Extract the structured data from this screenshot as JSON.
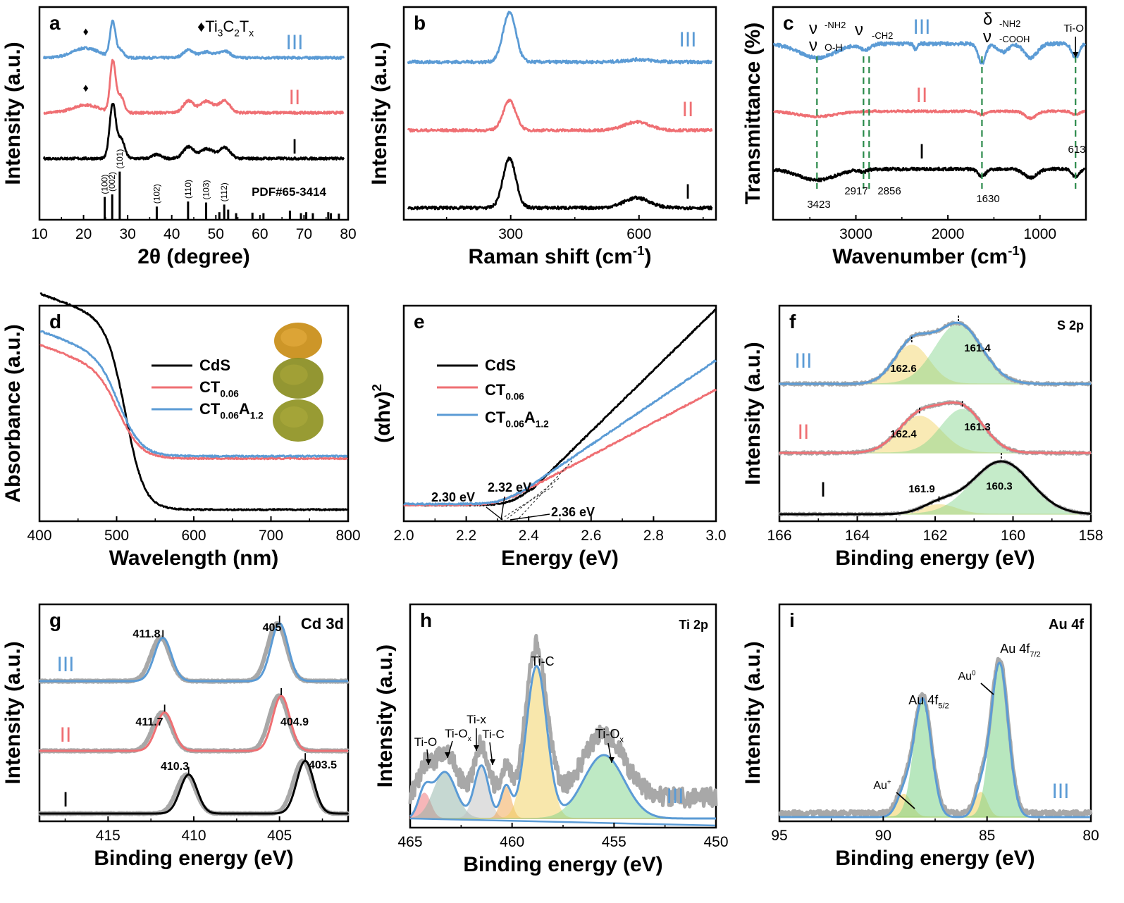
{
  "colors": {
    "I": "#000000",
    "II": "#ef6f73",
    "III": "#5b9bd5",
    "ref": "#a8a8a8",
    "dash": "#2a8a4a",
    "gold": "#f2d15c",
    "green": "#7fd48a",
    "orange": "#f3a24a",
    "red": "#ef6f73",
    "tealgray": "#8fb3a6"
  },
  "chart_data": [
    {
      "id": "a",
      "type": "line",
      "xlabel": "2θ (degree)",
      "ylabel": "Intensity (a.u.)",
      "xlim": [
        10,
        80
      ],
      "xticks": [
        "10",
        "20",
        "30",
        "40",
        "50",
        "60",
        "70",
        "80"
      ],
      "legend": "♦Ti3C2Tx",
      "pdf_label": "PDF#65-3414",
      "series": [
        {
          "name": "III",
          "color": "#5b9bd5",
          "peaks": [
            [
              20.5,
              0.25,
              3
            ],
            [
              26.6,
              0.9,
              0.6
            ],
            [
              28.3,
              0.2,
              0.8
            ],
            [
              43.8,
              0.2,
              1.2
            ],
            [
              48,
              0.15,
              1.5
            ],
            [
              52,
              0.18,
              1.2
            ]
          ]
        },
        {
          "name": "II",
          "color": "#ef6f73",
          "peaks": [
            [
              20.5,
              0.2,
              3
            ],
            [
              26.6,
              1.3,
              0.6
            ],
            [
              28.3,
              0.45,
              0.8
            ],
            [
              43.8,
              0.3,
              1.2
            ],
            [
              48,
              0.3,
              1.5
            ],
            [
              52,
              0.3,
              1.2
            ]
          ]
        },
        {
          "name": "I",
          "color": "#000000",
          "peaks": [
            [
              26.6,
              1.4,
              0.7
            ],
            [
              28.5,
              0.5,
              0.8
            ],
            [
              36.6,
              0.1,
              1
            ],
            [
              43.8,
              0.3,
              1.2
            ],
            [
              48,
              0.25,
              1.5
            ],
            [
              52,
              0.28,
              1.2
            ]
          ]
        }
      ],
      "reference_sticks": [
        [
          24.8,
          0.45
        ],
        [
          26.5,
          0.5
        ],
        [
          28.2,
          0.95
        ],
        [
          36.6,
          0.26
        ],
        [
          43.7,
          0.36
        ],
        [
          47.8,
          0.34
        ],
        [
          50.8,
          0.15
        ],
        [
          51.9,
          0.3
        ],
        [
          52.8,
          0.2
        ],
        [
          54.6,
          0.13
        ],
        [
          58.3,
          0.14
        ],
        [
          60.8,
          0.13
        ],
        [
          66.8,
          0.18
        ],
        [
          69.3,
          0.13
        ],
        [
          70.5,
          0.15
        ],
        [
          72,
          0.13
        ],
        [
          75.5,
          0.15
        ],
        [
          76.1,
          0.13
        ],
        [
          77.9,
          0.12
        ]
      ],
      "hkl": [
        {
          "x": 24.8,
          "t": "(100)"
        },
        {
          "x": 26.5,
          "t": "(002)"
        },
        {
          "x": 28.2,
          "t": "(101)"
        },
        {
          "x": 36.6,
          "t": "(102)"
        },
        {
          "x": 43.7,
          "t": "(110)"
        },
        {
          "x": 47.8,
          "t": "(103)"
        },
        {
          "x": 51.9,
          "t": "(112)"
        }
      ]
    },
    {
      "id": "b",
      "type": "line",
      "xlabel": "Raman shift (cm-1)",
      "ylabel": "Intensity (a.u.)",
      "xlim": [
        50,
        780
      ],
      "xticks": [
        "300",
        "600"
      ],
      "series": [
        {
          "name": "III",
          "color": "#5b9bd5",
          "peaks": [
            [
              297,
              1,
              15
            ],
            [
              600,
              0.05,
              30
            ]
          ]
        },
        {
          "name": "II",
          "color": "#ef6f73",
          "peaks": [
            [
              297,
              0.7,
              15
            ],
            [
              595,
              0.2,
              30
            ]
          ]
        },
        {
          "name": "I",
          "color": "#000000",
          "peaks": [
            [
              297,
              1,
              15
            ],
            [
              595,
              0.2,
              30
            ]
          ]
        }
      ]
    },
    {
      "id": "c",
      "type": "line",
      "xlabel": "Wavenumber (cm-1)",
      "ylabel": "Transmittance (%)",
      "xlim": [
        3900,
        500
      ],
      "xticks": [
        "3000",
        "2000",
        "1000"
      ],
      "band_labels": [
        "ν-NH2",
        "νO-H",
        "ν-CH2",
        "δ-NH2",
        "ν-COOH",
        "Ti-O"
      ],
      "dashed_positions": [
        3423,
        2917,
        2856,
        1630,
        613
      ],
      "wavenumber_labels": [
        "3423",
        "2917",
        "2856",
        "1630",
        "613"
      ],
      "series": [
        {
          "name": "III",
          "color": "#5b9bd5",
          "dips": [
            [
              3423,
              0.5,
              200
            ],
            [
              2917,
              0.15,
              40
            ],
            [
              2856,
              0.12,
              40
            ],
            [
              2350,
              0.2,
              20
            ],
            [
              1630,
              0.7,
              40
            ],
            [
              1400,
              0.3,
              60
            ],
            [
              1100,
              0.5,
              70
            ],
            [
              613,
              0.5,
              40
            ]
          ]
        },
        {
          "name": "II",
          "color": "#ef6f73",
          "dips": [
            [
              3423,
              0.3,
              200
            ],
            [
              1630,
              0.2,
              40
            ],
            [
              1100,
              0.4,
              60
            ],
            [
              613,
              0.2,
              40
            ]
          ]
        },
        {
          "name": "I",
          "color": "#000000",
          "dips": [
            [
              3423,
              0.45,
              200
            ],
            [
              2917,
              0.1,
              40
            ],
            [
              1630,
              0.3,
              40
            ],
            [
              1100,
              0.35,
              70
            ],
            [
              613,
              0.3,
              40
            ]
          ]
        }
      ]
    },
    {
      "id": "d",
      "type": "line",
      "xlabel": "Wavelength (nm)",
      "ylabel": "Absorbance (a.u.)",
      "xlim": [
        400,
        800
      ],
      "xticks": [
        "400",
        "500",
        "600",
        "700",
        "800"
      ],
      "legend_labels": [
        "CdS",
        "CT0.06",
        "CT0.06A1.2"
      ],
      "series": [
        {
          "name": "CdS",
          "color": "#000000",
          "high": 0.86,
          "low": 0.05,
          "edge": 512,
          "width": 12
        },
        {
          "name": "CT0.06",
          "color": "#ef6f73",
          "high": 0.64,
          "low": 0.27,
          "edge": 505,
          "width": 14
        },
        {
          "name": "CT0.06A1.2",
          "color": "#5b9bd5",
          "high": 0.7,
          "low": 0.28,
          "edge": 505,
          "width": 14
        }
      ]
    },
    {
      "id": "e",
      "type": "line",
      "xlabel": "Energy (eV)",
      "ylabel": "(αhv)2",
      "xlim": [
        2.0,
        3.0
      ],
      "xticks": [
        "2.0",
        "2.2",
        "2.4",
        "2.6",
        "2.8",
        "3.0"
      ],
      "legend_labels": [
        "CdS",
        "CT0.06",
        "CT0.06A1.2"
      ],
      "edge_labels": [
        "2.30 eV",
        "2.32 eV",
        "2.36 eV"
      ],
      "series": [
        {
          "name": "CdS",
          "color": "#000000",
          "base": 0.05,
          "eg": 2.36,
          "slope": 1.45
        },
        {
          "name": "CT0.06",
          "color": "#ef6f73",
          "base": 0.05,
          "eg": 2.3,
          "slope": 0.78
        },
        {
          "name": "CT0.06A1.2",
          "color": "#5b9bd5",
          "base": 0.055,
          "eg": 2.32,
          "slope": 1.0
        }
      ]
    },
    {
      "id": "f",
      "type": "line",
      "xlabel": "Binding energy (eV)",
      "ylabel": "Intensity (a.u.)",
      "xlim": [
        166,
        158
      ],
      "xticks": [
        "166",
        "164",
        "162",
        "160",
        "158"
      ],
      "panel_title": "S 2p",
      "series": [
        {
          "name": "III",
          "color": "#5b9bd5",
          "components": [
            [
              162.6,
              0.55,
              0.45
            ],
            [
              161.4,
              0.85,
              0.6
            ]
          ],
          "peak_labels": [
            "162.6",
            "161.4"
          ]
        },
        {
          "name": "II",
          "color": "#ef6f73",
          "components": [
            [
              162.4,
              0.55,
              0.55
            ],
            [
              161.3,
              0.65,
              0.55
            ]
          ],
          "peak_labels": [
            "162.4",
            "161.3"
          ]
        },
        {
          "name": "I",
          "color": "#000000",
          "components": [
            [
              161.9,
              0.18,
              0.45
            ],
            [
              160.3,
              1.0,
              0.75
            ]
          ],
          "peak_labels": [
            "161.9",
            "160.3"
          ]
        }
      ]
    },
    {
      "id": "g",
      "type": "line",
      "xlabel": "Binding energy (eV)",
      "ylabel": "Intensity (a.u.)",
      "xlim": [
        419,
        401
      ],
      "xticks": [
        "415",
        "410",
        "405"
      ],
      "panel_title": "Cd 3d",
      "series": [
        {
          "name": "III",
          "color": "#5b9bd5",
          "peaks": [
            [
              411.8,
              0.75,
              0.5
            ],
            [
              405,
              1.0,
              0.5
            ]
          ],
          "peak_labels": [
            "411.8",
            "405"
          ]
        },
        {
          "name": "II",
          "color": "#ef6f73",
          "peaks": [
            [
              411.7,
              0.7,
              0.5
            ],
            [
              404.9,
              1.0,
              0.5
            ]
          ],
          "peak_labels": [
            "411.7",
            "404.9"
          ]
        },
        {
          "name": "I",
          "color": "#000000",
          "peaks": [
            [
              410.3,
              0.85,
              0.5
            ],
            [
              403.5,
              1.15,
              0.5
            ]
          ],
          "peak_labels": [
            "410.3",
            "403.5"
          ]
        }
      ]
    },
    {
      "id": "h",
      "type": "line",
      "xlabel": "Binding energy (eV)",
      "ylabel": "Intensity (a.u.)",
      "xlim": [
        465,
        450
      ],
      "xticks": [
        "465",
        "460",
        "455",
        "450"
      ],
      "panel_title": "Ti 2p",
      "series_label": "III",
      "component_labels": [
        "Ti-O",
        "Ti-Ox",
        "Ti-x",
        "Ti-C",
        "Ti-C",
        "Ti-Ox"
      ],
      "components": [
        {
          "c": 464.3,
          "a": 0.12,
          "w": 0.3,
          "color": "#ef6f73"
        },
        {
          "c": 463.3,
          "a": 0.22,
          "w": 0.55,
          "color": "#8fb3a6"
        },
        {
          "c": 461.5,
          "a": 0.25,
          "w": 0.35,
          "color": "#c0c0c0"
        },
        {
          "c": 460.3,
          "a": 0.15,
          "w": 0.25,
          "color": "#f3a24a"
        },
        {
          "c": 458.8,
          "a": 0.72,
          "w": 0.5,
          "color": "#f2d15c"
        },
        {
          "c": 455.5,
          "a": 0.3,
          "w": 1.0,
          "color": "#7fd48a"
        }
      ]
    },
    {
      "id": "i",
      "type": "line",
      "xlabel": "Binding energy (eV)",
      "ylabel": "Intensity (a.u.)",
      "xlim": [
        95,
        80
      ],
      "xticks": [
        "95",
        "90",
        "85",
        "80"
      ],
      "panel_title": "Au 4f",
      "series_label": "III",
      "peak_labels": [
        "Au 4f5/2",
        "Au 4f7/2",
        "Au0",
        "Au+"
      ],
      "components": [
        {
          "c": 89.0,
          "a": 0.12,
          "w": 0.35,
          "color": "#f2d15c"
        },
        {
          "c": 88.1,
          "a": 0.62,
          "w": 0.42,
          "color": "#7fd48a"
        },
        {
          "c": 85.3,
          "a": 0.13,
          "w": 0.3,
          "color": "#f2d15c"
        },
        {
          "c": 84.4,
          "a": 0.81,
          "w": 0.42,
          "color": "#7fd48a"
        }
      ]
    }
  ],
  "panels": {
    "a": {
      "letter": "a",
      "legend_pre": "♦Ti",
      "legend_sub1": "3",
      "legend_mid": "C",
      "legend_sub2": "2",
      "legend_mid2": "T",
      "legend_sub3": "x"
    },
    "b": {
      "letter": "b"
    },
    "c": {
      "letter": "c"
    },
    "d": {
      "letter": "d"
    },
    "e": {
      "letter": "e"
    },
    "f": {
      "letter": "f"
    },
    "g": {
      "letter": "g"
    },
    "h": {
      "letter": "h"
    },
    "i": {
      "letter": "i"
    }
  },
  "labels": {
    "I": "I",
    "II": "II",
    "III": "III",
    "diamond": "♦",
    "cds": "CdS",
    "ct": "CT",
    "ct_sub": "0.06",
    "cta_sub2": "1.2",
    "a_letter": "A",
    "raman_unit": "Raman shift (cm",
    "raman_sup": "-1",
    "raman_close": ")",
    "wn_unit": "Wavenumber (cm",
    "wn_sup": "-1",
    "wn_close": ")",
    "ahv": "(αhv)",
    "ahv_sup": "2",
    "nu": "ν",
    "delta": "δ",
    "nh2": "-NH2",
    "oh": "O-H",
    "ch2": "-CH2",
    "cooh": "-COOH",
    "tio": "Ti-O",
    "tiox": "Ti-O",
    "tiox_sub": "x",
    "tix": "Ti-x",
    "tic": "Ti-C",
    "au52": "Au 4f",
    "au52_sub": "5/2",
    "au72": "Au 4f",
    "au72_sub": "7/2",
    "au0": "Au",
    "au0_sup": "0",
    "aup": "Au",
    "aup_sup": "+"
  }
}
